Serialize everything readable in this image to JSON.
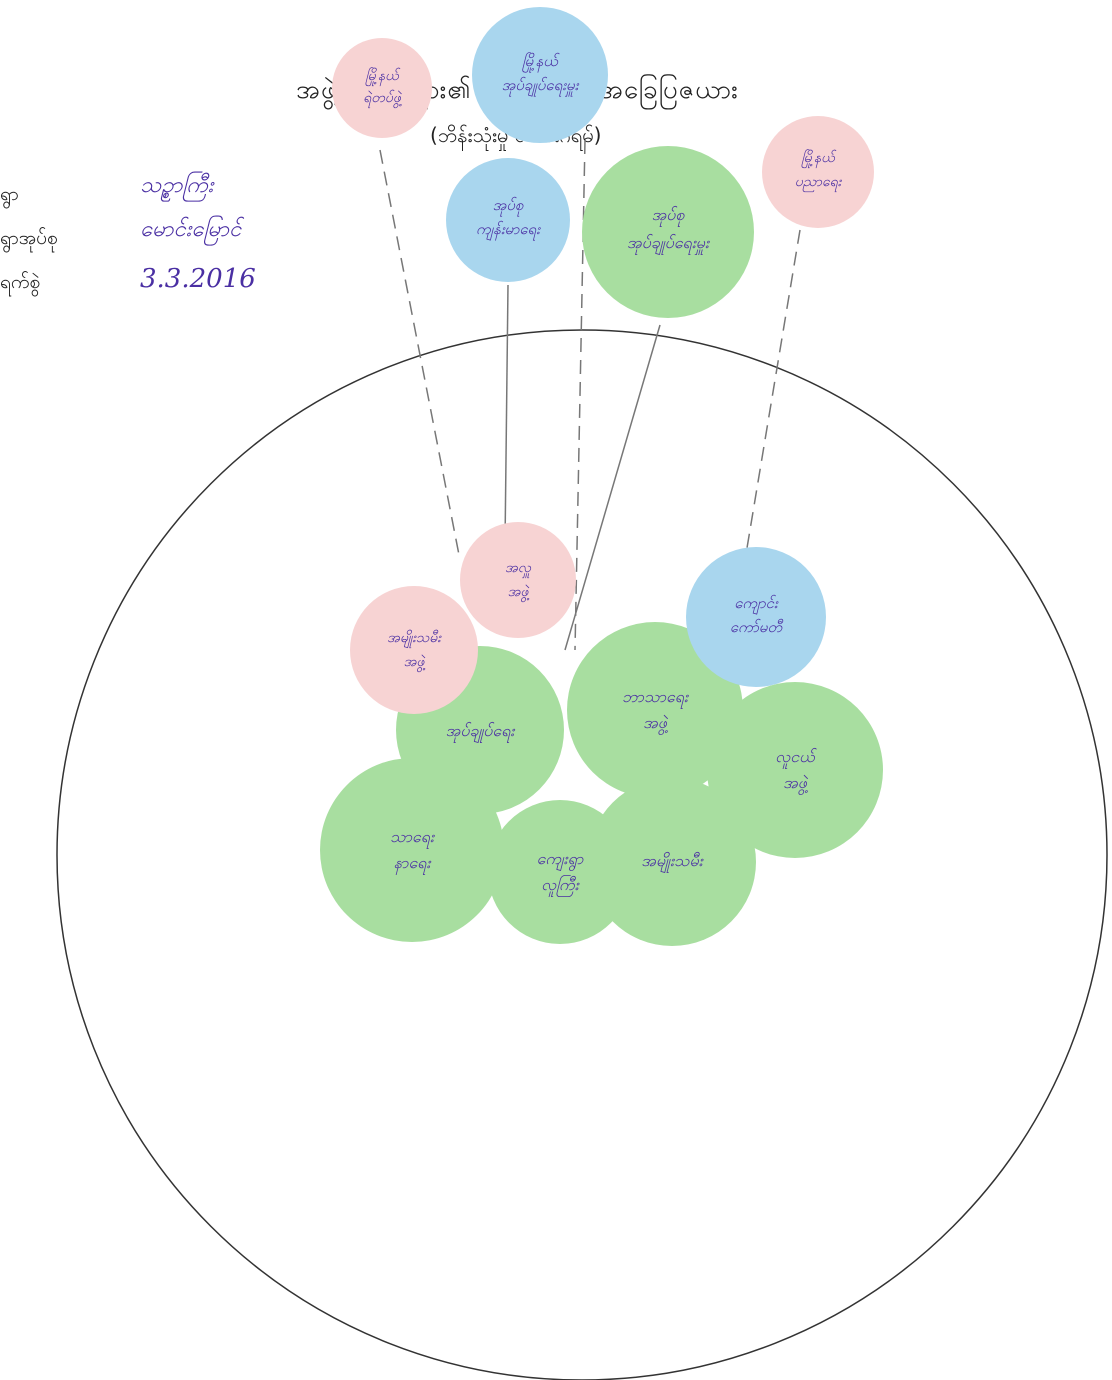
{
  "header": {
    "title": "အဖွဲ့အစည်းများ၏ ဆက်နွယ်မှု အခြေပြဇယား",
    "subtitle": "(ဘိန်းသုံးမှု ဇယားဂရမ်)"
  },
  "meta": [
    {
      "label": "ရွာ",
      "value": "သဥ္စာကြီး"
    },
    {
      "label": "ရွာအုပ်စု",
      "value": "မောင်းမြောင်"
    },
    {
      "label": "ရက်စွဲ",
      "value": "3.3.2016"
    }
  ],
  "colors": {
    "pink": "#f7d3d3",
    "blue": "#a9d6ee",
    "green": "#a8dea0",
    "outline": "#333333",
    "ink": "#4a2fa3"
  },
  "circles": {
    "outside": [
      {
        "id": "ext-1",
        "label": "မြို့နယ် ရဲတပ်ဖွဲ့",
        "color": "pink"
      },
      {
        "id": "ext-2",
        "label": "မြို့နယ် အုပ်ချုပ်ရေးမှူး",
        "color": "blue"
      },
      {
        "id": "ext-3",
        "label": "အုပ်စု ကျန်းမာရေး",
        "color": "blue"
      },
      {
        "id": "ext-4",
        "label": "အုပ်စု အုပ်ချုပ်ရေးမှူး",
        "color": "green"
      },
      {
        "id": "ext-5",
        "label": "မြို့နယ် ပညာရေး",
        "color": "pink"
      }
    ],
    "inside": [
      {
        "id": "in-1",
        "label": "အလှူ အဖွဲ့",
        "color": "pink"
      },
      {
        "id": "in-2",
        "label": "အမျိုးသမီး အဖွဲ့",
        "color": "pink"
      },
      {
        "id": "in-3",
        "label": "ကျောင်း ကော်မတီ",
        "color": "blue"
      },
      {
        "id": "in-4",
        "label": "အုပ်ချုပ်ရေး",
        "color": "green"
      },
      {
        "id": "in-5",
        "label": "ဘာသာရေး အဖွဲ့",
        "color": "green"
      },
      {
        "id": "in-6",
        "label": "လူငယ် အဖွဲ့",
        "color": "green"
      },
      {
        "id": "in-7",
        "label": "သာရေး နာရေး",
        "color": "green"
      },
      {
        "id": "in-8",
        "label": "ကျေးရွာ လူကြီး",
        "color": "green"
      },
      {
        "id": "in-9",
        "label": "အမျိုးသမီး",
        "color": "green"
      }
    ]
  }
}
